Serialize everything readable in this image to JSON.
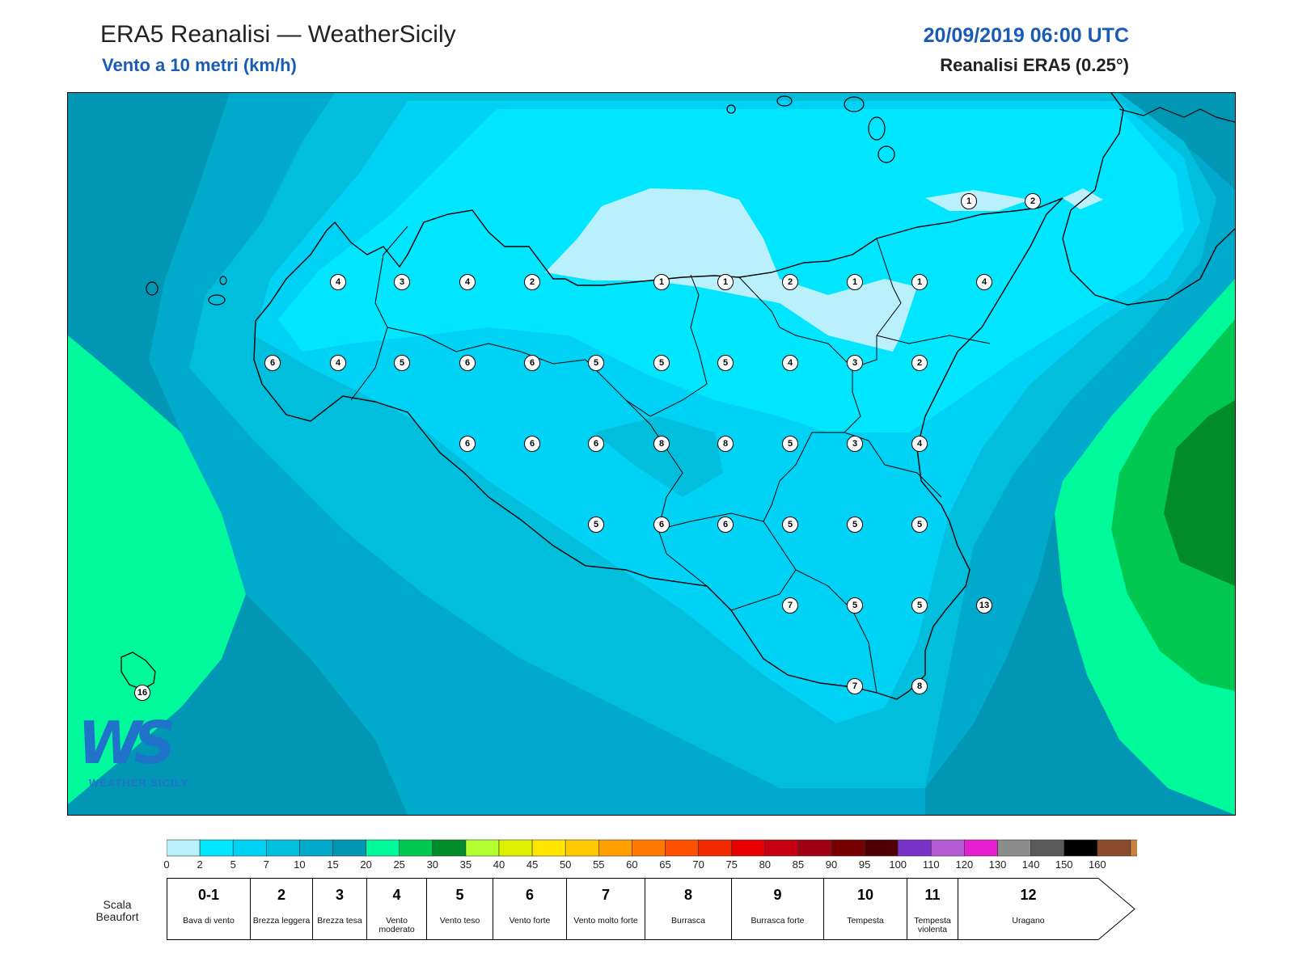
{
  "header": {
    "title": "ERA5 Reanalisi — WeatherSicily",
    "subtitle": "Vento a 10 metri (km/h)",
    "datetime": "20/09/2019 06:00 UTC",
    "source": "Reanalisi ERA5 (0.25°)"
  },
  "logo": {
    "letters": "WS",
    "name": "WEATHER SICILY"
  },
  "wind_points": [
    {
      "v": "1"
    },
    {
      "v": "2"
    },
    {
      "v": "4"
    },
    {
      "v": "3"
    },
    {
      "v": "4"
    },
    {
      "v": "2"
    },
    {
      "v": "1"
    },
    {
      "v": "1"
    },
    {
      "v": "2"
    },
    {
      "v": "1"
    },
    {
      "v": "1"
    },
    {
      "v": "4"
    },
    {
      "v": "6"
    },
    {
      "v": "4"
    },
    {
      "v": "5"
    },
    {
      "v": "6"
    },
    {
      "v": "6"
    },
    {
      "v": "5"
    },
    {
      "v": "5"
    },
    {
      "v": "5"
    },
    {
      "v": "4"
    },
    {
      "v": "3"
    },
    {
      "v": "2"
    },
    {
      "v": "6"
    },
    {
      "v": "6"
    },
    {
      "v": "6"
    },
    {
      "v": "8"
    },
    {
      "v": "8"
    },
    {
      "v": "5"
    },
    {
      "v": "3"
    },
    {
      "v": "4"
    },
    {
      "v": "5"
    },
    {
      "v": "6"
    },
    {
      "v": "6"
    },
    {
      "v": "5"
    },
    {
      "v": "5"
    },
    {
      "v": "5"
    },
    {
      "v": "7"
    },
    {
      "v": "5"
    },
    {
      "v": "5"
    },
    {
      "v": "13"
    },
    {
      "v": "7"
    },
    {
      "v": "8"
    },
    {
      "v": "16"
    }
  ],
  "colorbar": {
    "ticks": [
      "0",
      "2",
      "5",
      "7",
      "10",
      "15",
      "20",
      "25",
      "30",
      "35",
      "40",
      "45",
      "50",
      "55",
      "60",
      "65",
      "70",
      "75",
      "80",
      "85",
      "90",
      "95",
      "100",
      "110",
      "120",
      "130",
      "140",
      "150",
      "160"
    ],
    "colors": [
      "#b9f0fb",
      "#00e6ff",
      "#00d2f5",
      "#00bedc",
      "#00aacd",
      "#0096b4",
      "#00fa9b",
      "#00c850",
      "#008c28",
      "#b4ff32",
      "#dcf000",
      "#ffe600",
      "#ffc800",
      "#ffa000",
      "#ff7800",
      "#ff5000",
      "#f02800",
      "#e60000",
      "#c80014",
      "#a00014",
      "#780000",
      "#500000",
      "#7832c8",
      "#b45ad2",
      "#e61ed2",
      "#8c8c8c",
      "#5a5a5a",
      "#000000",
      "#8c4b2d",
      "#c8823c"
    ]
  },
  "beaufort": {
    "label": "Scala Beaufort",
    "classes": [
      {
        "n": "0-1",
        "d": "Bava di vento"
      },
      {
        "n": "2",
        "d": "Brezza leggera"
      },
      {
        "n": "3",
        "d": "Brezza tesa"
      },
      {
        "n": "4",
        "d": "Vento moderato"
      },
      {
        "n": "5",
        "d": "Vento teso"
      },
      {
        "n": "6",
        "d": "Vento forte"
      },
      {
        "n": "7",
        "d": "Vento molto forte"
      },
      {
        "n": "8",
        "d": "Burrasca"
      },
      {
        "n": "9",
        "d": "Burrasca forte"
      },
      {
        "n": "10",
        "d": "Tempesta"
      },
      {
        "n": "11",
        "d": "Tempesta violenta"
      },
      {
        "n": "12",
        "d": "Uragano"
      }
    ]
  }
}
